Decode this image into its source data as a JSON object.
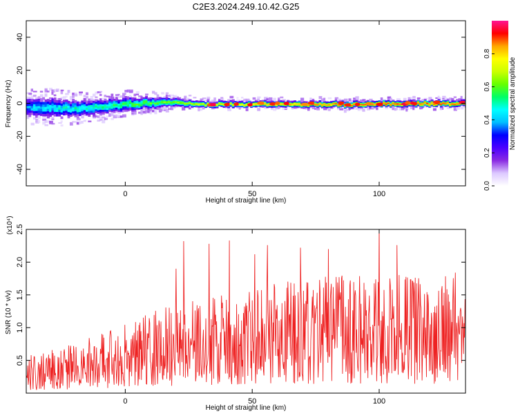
{
  "figure": {
    "title": "C2E3.2024.249.10.42.G25"
  },
  "chart_data": [
    {
      "type": "heatmap",
      "xlabel": "Height of straight line (km)",
      "ylabel": "Frequency (Hz)",
      "xlim": [
        -39,
        134
      ],
      "ylim": [
        -50,
        50
      ],
      "xticks": [
        0,
        50,
        100
      ],
      "yticks": [
        -40,
        -20,
        0,
        20,
        40
      ],
      "colorbar": {
        "label": "Normalized spectral amplitude",
        "range": [
          0,
          1
        ],
        "ticks": [
          0.0,
          0.2,
          0.4,
          0.6,
          0.8
        ],
        "colormap": [
          "#ffffff",
          "#dcc8ff",
          "#8a2be2",
          "#4b00ff",
          "#0000ff",
          "#00bfff",
          "#00ffff",
          "#00ff66",
          "#66ff00",
          "#ccff00",
          "#ffff00",
          "#ffa500",
          "#ff0000",
          "#ff1493"
        ]
      },
      "band_profile": {
        "x": [
          -39,
          -30,
          -20,
          -10,
          0,
          10,
          20,
          30,
          50,
          70,
          90,
          110,
          134
        ],
        "center_hz": [
          -1.5,
          -2.5,
          -3,
          -2,
          -0.5,
          0.5,
          0.5,
          -0.5,
          -0.5,
          -0.5,
          -0.5,
          0,
          0
        ],
        "halfwidth_hz": [
          6,
          6.5,
          5.5,
          5,
          4.5,
          3.5,
          2.5,
          2,
          2,
          2,
          2,
          2,
          2
        ],
        "peak_amplitude": [
          0.4,
          0.45,
          0.48,
          0.5,
          0.55,
          0.6,
          0.65,
          0.7,
          0.8,
          0.85,
          0.88,
          0.9,
          0.9
        ]
      }
    },
    {
      "type": "line",
      "xlabel": "Height of straight line (km)",
      "ylabel": "SNR (10 * v/v)",
      "y_multiplier": "(x10⁴)",
      "xlim": [
        -39,
        134
      ],
      "ylim": [
        0,
        2.5
      ],
      "xticks": [
        0,
        50,
        100
      ],
      "yticks": [
        0.5,
        1.0,
        1.5,
        2.0,
        2.5
      ],
      "color": "#ee2222",
      "series": [
        {
          "x_start": -39,
          "x_end": 134,
          "envelope_x": [
            -39,
            -20,
            0,
            20,
            40,
            60,
            80,
            100,
            134
          ],
          "envelope_mean": [
            0.3,
            0.4,
            0.55,
            0.75,
            0.85,
            0.9,
            0.95,
            0.95,
            0.95
          ],
          "peaks": [
            {
              "x": 20,
              "y": 1.9
            },
            {
              "x": 23,
              "y": 2.32
            },
            {
              "x": 33,
              "y": 2.28
            },
            {
              "x": 41,
              "y": 2.33
            },
            {
              "x": 51,
              "y": 2.12
            },
            {
              "x": 56,
              "y": 2.26
            },
            {
              "x": 69,
              "y": 2.22
            },
            {
              "x": 80,
              "y": 2.2
            },
            {
              "x": 100,
              "y": 2.55
            },
            {
              "x": 107,
              "y": 2.26
            },
            {
              "x": 130,
              "y": 1.84
            }
          ]
        }
      ]
    }
  ]
}
